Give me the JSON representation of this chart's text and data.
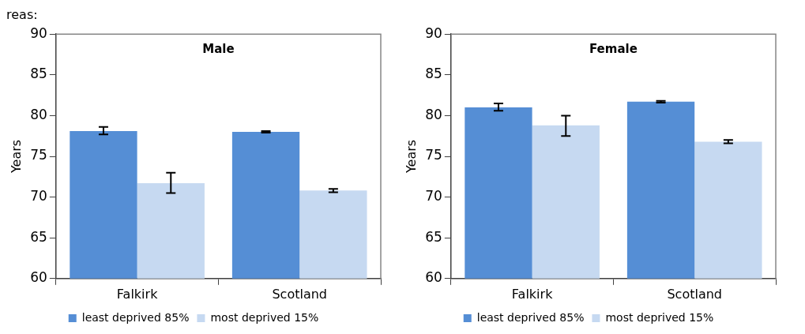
{
  "chart_data": [
    {
      "type": "bar",
      "title": "Male",
      "ylabel": "Years",
      "annotations": [
        "reas:"
      ],
      "categories": [
        "Falkirk",
        "Scotland"
      ],
      "ylim": [
        60,
        90
      ],
      "yticks": [
        60,
        65,
        70,
        75,
        80,
        85,
        90
      ],
      "grid": false,
      "legend": "bottom",
      "series": [
        {
          "name": "least deprived 85%",
          "color": "#558ed5",
          "values": [
            78.1,
            78.0
          ],
          "errors": [
            [
              77.7,
              78.6
            ],
            [
              77.9,
              78.1
            ]
          ]
        },
        {
          "name": "most deprived 15%",
          "color": "#c6d9f1",
          "values": [
            71.7,
            70.8
          ],
          "errors": [
            [
              70.5,
              73.0
            ],
            [
              70.6,
              71.0
            ]
          ]
        }
      ]
    },
    {
      "type": "bar",
      "title": "Female",
      "ylabel": "Years",
      "categories": [
        "Falkirk",
        "Scotland"
      ],
      "ylim": [
        60,
        90
      ],
      "yticks": [
        60,
        65,
        70,
        75,
        80,
        85,
        90
      ],
      "grid": false,
      "legend": "bottom",
      "series": [
        {
          "name": "least deprived 85%",
          "color": "#558ed5",
          "values": [
            81.0,
            81.7
          ],
          "errors": [
            [
              80.6,
              81.5
            ],
            [
              81.6,
              81.8
            ]
          ]
        },
        {
          "name": "most deprived 15%",
          "color": "#c6d9f1",
          "values": [
            78.8,
            76.8
          ],
          "errors": [
            [
              77.5,
              80.0
            ],
            [
              76.6,
              77.0
            ]
          ]
        }
      ]
    }
  ]
}
